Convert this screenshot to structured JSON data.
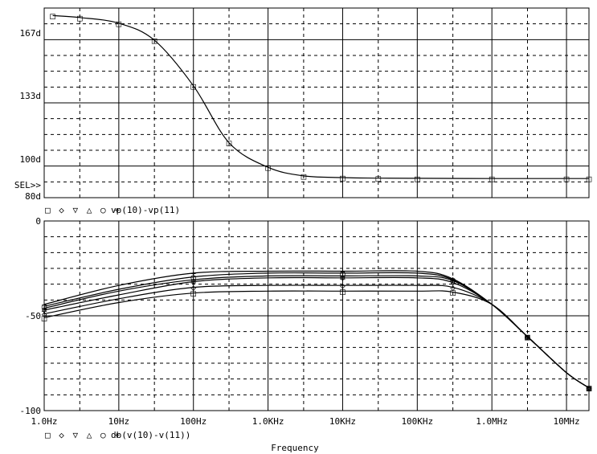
{
  "chart_data": [
    {
      "type": "line",
      "title": "",
      "xlabel": "Frequency",
      "ylabel": "",
      "x_scale": "log",
      "xlim": [
        1,
        20000000
      ],
      "ylim": [
        80,
        180
      ],
      "y_ticks": [
        {
          "value": 100,
          "label": "100d"
        },
        {
          "value": 133,
          "label": "133d"
        },
        {
          "value": 167,
          "label": "167d"
        }
      ],
      "y_bottom_label": "80d",
      "sel_label": "SEL>>",
      "legend_markers": [
        "□",
        "◇",
        "▽",
        "△",
        "○",
        "+"
      ],
      "legend_text": "vp(10)-vp(11)",
      "grid": true,
      "series": [
        {
          "marker": "□",
          "x": [
            1.3,
            3.0,
            10,
            30,
            100,
            300,
            1000,
            3000,
            10000,
            30000,
            100000,
            1000000,
            10000000,
            20000000
          ],
          "y": [
            176,
            175,
            172,
            163,
            139,
            109,
            96,
            91.5,
            90.6,
            90.3,
            90.2,
            90.1,
            90.1,
            90.1
          ]
        }
      ]
    },
    {
      "type": "line",
      "title": "",
      "xlabel": "Frequency",
      "ylabel": "",
      "x_scale": "log",
      "xlim": [
        1,
        20000000
      ],
      "ylim": [
        -100,
        0
      ],
      "x_ticks": [
        {
          "value": 1,
          "label": "1.0Hz"
        },
        {
          "value": 10,
          "label": "10Hz"
        },
        {
          "value": 100,
          "label": "100Hz"
        },
        {
          "value": 1000,
          "label": "1.0KHz"
        },
        {
          "value": 10000,
          "label": "10KHz"
        },
        {
          "value": 100000,
          "label": "100KHz"
        },
        {
          "value": 1000000,
          "label": "1.0MHz"
        },
        {
          "value": 10000000,
          "label": "10MHz"
        }
      ],
      "y_ticks": [
        {
          "value": 0,
          "label": "0"
        },
        {
          "value": -50,
          "label": "-50"
        },
        {
          "value": -100,
          "label": "-100"
        }
      ],
      "legend_markers": [
        "□",
        "◇",
        "▽",
        "△",
        "○",
        "+"
      ],
      "legend_text": "db(v(10)-v(11))",
      "grid": true,
      "series": [
        {
          "marker": "□",
          "x": [
            1,
            10,
            100,
            1000,
            10000,
            100000,
            300000,
            1000000,
            3000000,
            10000000,
            20000000
          ],
          "y": [
            -51,
            -43,
            -38,
            -37,
            -37,
            -37,
            -37.5,
            -44,
            -61,
            -80,
            -88
          ]
        },
        {
          "marker": "◇",
          "x": [
            1,
            10,
            100,
            1000,
            10000,
            100000,
            300000,
            1000000,
            3000000,
            10000000,
            20000000
          ],
          "y": [
            -49,
            -41,
            -35,
            -34,
            -34,
            -34,
            -35,
            -44,
            -61,
            -80,
            -88
          ]
        },
        {
          "marker": "▽",
          "x": [
            1,
            10,
            100,
            1000,
            10000,
            100000,
            300000,
            1000000,
            3000000,
            10000000,
            20000000
          ],
          "y": [
            -47,
            -39,
            -32,
            -30,
            -30,
            -30,
            -32.5,
            -44,
            -61,
            -80,
            -88
          ]
        },
        {
          "marker": "△",
          "x": [
            1,
            10,
            100,
            1000,
            10000,
            100000,
            300000,
            1000000,
            3000000,
            10000000,
            20000000
          ],
          "y": [
            -46,
            -37,
            -31,
            -29,
            -29,
            -29,
            -31.5,
            -44,
            -61,
            -80,
            -88
          ]
        },
        {
          "marker": "○",
          "x": [
            1,
            10,
            100,
            1000,
            10000,
            100000,
            300000,
            1000000,
            3000000,
            10000000,
            20000000
          ],
          "y": [
            -45,
            -36,
            -29.5,
            -27.5,
            -27.5,
            -27.5,
            -31,
            -44,
            -61,
            -80,
            -88
          ]
        },
        {
          "marker": "+",
          "x": [
            1,
            10,
            100,
            1000,
            10000,
            100000,
            300000,
            1000000,
            3000000,
            10000000,
            20000000
          ],
          "y": [
            -44,
            -34,
            -27.5,
            -26.5,
            -26.5,
            -26.5,
            -30.5,
            -44,
            -61,
            -80,
            -88
          ]
        }
      ]
    }
  ]
}
